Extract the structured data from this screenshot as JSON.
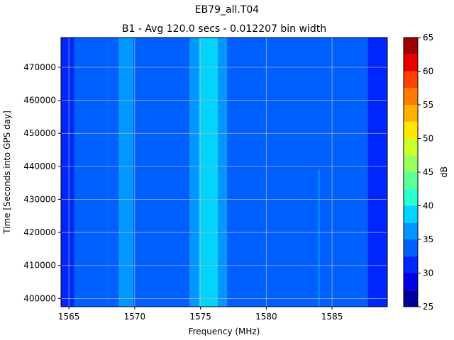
{
  "chart_data": {
    "type": "heatmap",
    "title": "EB79_all.T04",
    "subtitle": "B1 - Avg 120.0 secs - 0.012207 bin width",
    "xlabel": "Frequency (MHz)",
    "ylabel": "Time [Seconds into GPS day]",
    "xlim": [
      1564.4,
      1589.2
    ],
    "ylim": [
      397500,
      479000
    ],
    "x_ticks": [
      1565,
      1570,
      1575,
      1580,
      1585
    ],
    "y_ticks": [
      400000,
      410000,
      420000,
      430000,
      440000,
      450000,
      460000,
      470000
    ],
    "grid": true,
    "colorbar": {
      "label": "dB",
      "min": 25,
      "max": 65,
      "ticks": [
        25,
        30,
        35,
        40,
        45,
        50,
        55,
        60,
        65
      ],
      "levels": [
        25,
        27.5,
        30,
        32.5,
        35,
        37.5,
        40,
        42.5,
        45,
        47.5,
        50,
        52.5,
        55,
        57.5,
        60,
        62.5,
        65
      ],
      "colors": [
        "#00009f",
        "#0000e6",
        "#0026ff",
        "#0060ff",
        "#0098ff",
        "#00d4ff",
        "#2affcd",
        "#5fff98",
        "#98ff5f",
        "#cdff2a",
        "#ffe800",
        "#ffb000",
        "#ff7a00",
        "#ff4000",
        "#e60000",
        "#9f0000"
      ]
    },
    "bands": [
      {
        "x_range": [
          1564.4,
          1565.4
        ],
        "value": 31
      },
      {
        "x_range": [
          1565.4,
          1568.0
        ],
        "value": 33
      },
      {
        "x_range": [
          1568.0,
          1568.8
        ],
        "value": 34
      },
      {
        "x_range": [
          1568.8,
          1569.9
        ],
        "value": 36
      },
      {
        "x_range": [
          1569.9,
          1574.2
        ],
        "value": 34
      },
      {
        "x_range": [
          1574.2,
          1574.9
        ],
        "value": 36
      },
      {
        "x_range": [
          1574.9,
          1576.3
        ],
        "value": 38
      },
      {
        "x_range": [
          1576.3,
          1577.0
        ],
        "value": 36
      },
      {
        "x_range": [
          1577.0,
          1587.7
        ],
        "value": 34
      },
      {
        "x_range": [
          1587.7,
          1589.2
        ],
        "value": 31
      }
    ],
    "spikes": [
      {
        "x": 1584.0,
        "y_range": [
          397500,
          439000
        ],
        "value": 36
      }
    ]
  }
}
